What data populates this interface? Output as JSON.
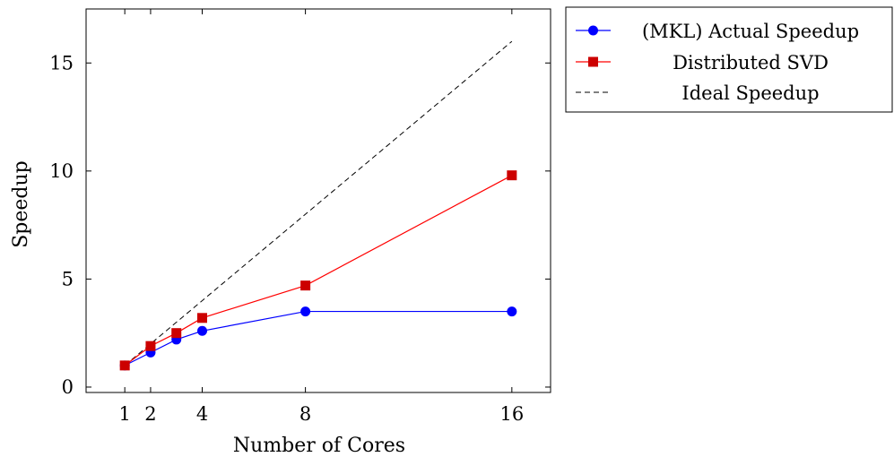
{
  "chart_data": {
    "type": "line",
    "title": "",
    "xlabel": "Number of Cores",
    "ylabel": "Speedup",
    "xlim": [
      -0.5,
      17.5
    ],
    "ylim": [
      -0.25,
      17.5
    ],
    "x_ticks": [
      1,
      2,
      4,
      8,
      16
    ],
    "y_ticks": [
      0,
      5,
      10,
      15
    ],
    "legend_position": "outside-top-right",
    "grid": false,
    "series": [
      {
        "name": "(MKL) Actual Speedup",
        "color": "#0000ff",
        "marker": "circle",
        "line_style": "solid",
        "x": [
          1,
          2,
          3,
          4,
          8,
          16
        ],
        "y": [
          1.0,
          1.6,
          2.2,
          2.6,
          3.5,
          3.5
        ]
      },
      {
        "name": "Distributed SVD",
        "color": "#ff0000",
        "marker": "square",
        "line_style": "solid",
        "x": [
          1,
          2,
          3,
          4,
          8,
          16
        ],
        "y": [
          1.0,
          1.9,
          2.5,
          3.2,
          4.7,
          9.8
        ]
      },
      {
        "name": "Ideal Speedup",
        "color": "#000000",
        "marker": "none",
        "line_style": "dashed",
        "x": [
          1,
          16
        ],
        "y": [
          1,
          16
        ]
      }
    ]
  }
}
